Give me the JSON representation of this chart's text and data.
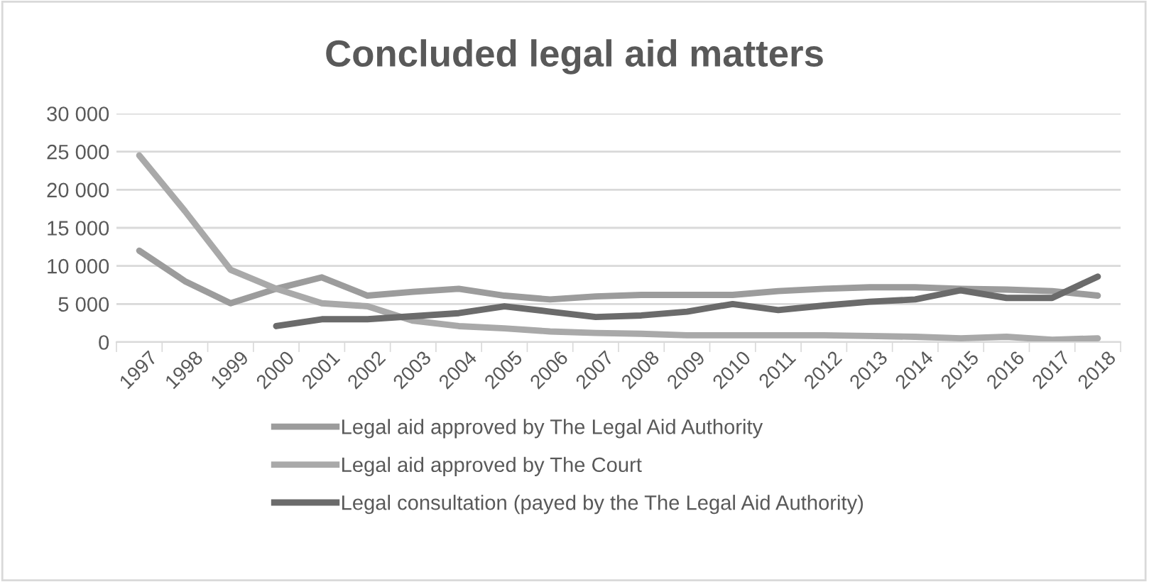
{
  "chart_data": {
    "type": "line",
    "title": "Concluded legal aid matters",
    "categories": [
      "1997",
      "1998",
      "1999",
      "2000",
      "2001",
      "2002",
      "2003",
      "2004",
      "2005",
      "2006",
      "2007",
      "2008",
      "2009",
      "2010",
      "2011",
      "2012",
      "2013",
      "2014",
      "2015",
      "2016",
      "2017",
      "2018"
    ],
    "series": [
      {
        "name": "Legal aid approved by The Legal Aid Authority",
        "color": "#9c9c9c",
        "values": [
          12000,
          8000,
          5100,
          7000,
          8500,
          6100,
          6600,
          7000,
          6100,
          5600,
          6000,
          6200,
          6200,
          6200,
          6700,
          7000,
          7200,
          7200,
          7000,
          6900,
          6700,
          6100
        ]
      },
      {
        "name": "Legal aid approved by The Court",
        "color": "#a9a9a9",
        "values": [
          24500,
          17200,
          9500,
          7000,
          5100,
          4700,
          2800,
          2100,
          1800,
          1400,
          1200,
          1100,
          900,
          900,
          900,
          900,
          800,
          700,
          500,
          700,
          300,
          500
        ]
      },
      {
        "name": "Legal consultation (payed by the The Legal Aid Authority)",
        "color": "#6b6b6b",
        "values": [
          null,
          null,
          null,
          2100,
          3000,
          3000,
          3400,
          3800,
          4700,
          4000,
          3300,
          3500,
          4000,
          5000,
          4200,
          4800,
          5300,
          5600,
          6800,
          5800,
          5800,
          8600
        ]
      }
    ],
    "ylim": [
      0,
      30000
    ],
    "yticks": [
      {
        "value": 0,
        "label": "0"
      },
      {
        "value": 5000,
        "label": "5 000"
      },
      {
        "value": 10000,
        "label": "10 000"
      },
      {
        "value": 15000,
        "label": "15 000"
      },
      {
        "value": 20000,
        "label": "20 000"
      },
      {
        "value": 25000,
        "label": "25 000"
      },
      {
        "value": 30000,
        "label": "30 000"
      }
    ],
    "grid": "y",
    "legend": "bottom",
    "marker": "none",
    "line_style": "solid"
  }
}
